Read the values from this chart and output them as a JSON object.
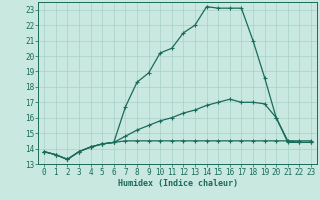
{
  "title": "",
  "xlabel": "Humidex (Indice chaleur)",
  "ylabel": "",
  "bg_color": "#c8e8e0",
  "line_color": "#1a6b5a",
  "grid_color": "#a8d0c8",
  "xlim": [
    -0.5,
    23.5
  ],
  "ylim": [
    13,
    23.5
  ],
  "xticks": [
    0,
    1,
    2,
    3,
    4,
    5,
    6,
    7,
    8,
    9,
    10,
    11,
    12,
    13,
    14,
    15,
    16,
    17,
    18,
    19,
    20,
    21,
    22,
    23
  ],
  "yticks": [
    13,
    14,
    15,
    16,
    17,
    18,
    19,
    20,
    21,
    22,
    23
  ],
  "line1_x": [
    0,
    1,
    2,
    3,
    4,
    5,
    6,
    7,
    8,
    9,
    10,
    11,
    12,
    13,
    14,
    15,
    16,
    17,
    18,
    19,
    20,
    21,
    22,
    23
  ],
  "line1_y": [
    13.8,
    13.6,
    13.3,
    13.8,
    14.1,
    14.3,
    14.4,
    16.7,
    18.3,
    18.9,
    20.2,
    20.5,
    21.5,
    22.0,
    23.2,
    23.1,
    23.1,
    23.1,
    21.0,
    18.6,
    16.0,
    14.4,
    14.4,
    14.4
  ],
  "line2_x": [
    0,
    1,
    2,
    3,
    4,
    5,
    6,
    7,
    8,
    9,
    10,
    11,
    12,
    13,
    14,
    15,
    16,
    17,
    18,
    19,
    20,
    21,
    22,
    23
  ],
  "line2_y": [
    13.8,
    13.6,
    13.3,
    13.8,
    14.1,
    14.3,
    14.4,
    14.8,
    15.2,
    15.5,
    15.8,
    16.0,
    16.3,
    16.5,
    16.8,
    17.0,
    17.2,
    17.0,
    17.0,
    16.9,
    16.0,
    14.5,
    14.4,
    14.4
  ],
  "line3_x": [
    0,
    1,
    2,
    3,
    4,
    5,
    6,
    7,
    8,
    9,
    10,
    11,
    12,
    13,
    14,
    15,
    16,
    17,
    18,
    19,
    20,
    21,
    22,
    23
  ],
  "line3_y": [
    13.8,
    13.6,
    13.3,
    13.8,
    14.1,
    14.3,
    14.4,
    14.5,
    14.5,
    14.5,
    14.5,
    14.5,
    14.5,
    14.5,
    14.5,
    14.5,
    14.5,
    14.5,
    14.5,
    14.5,
    14.5,
    14.5,
    14.5,
    14.5
  ],
  "tick_fontsize": 5.5,
  "xlabel_fontsize": 6.0,
  "marker_size": 3,
  "linewidth": 0.9
}
